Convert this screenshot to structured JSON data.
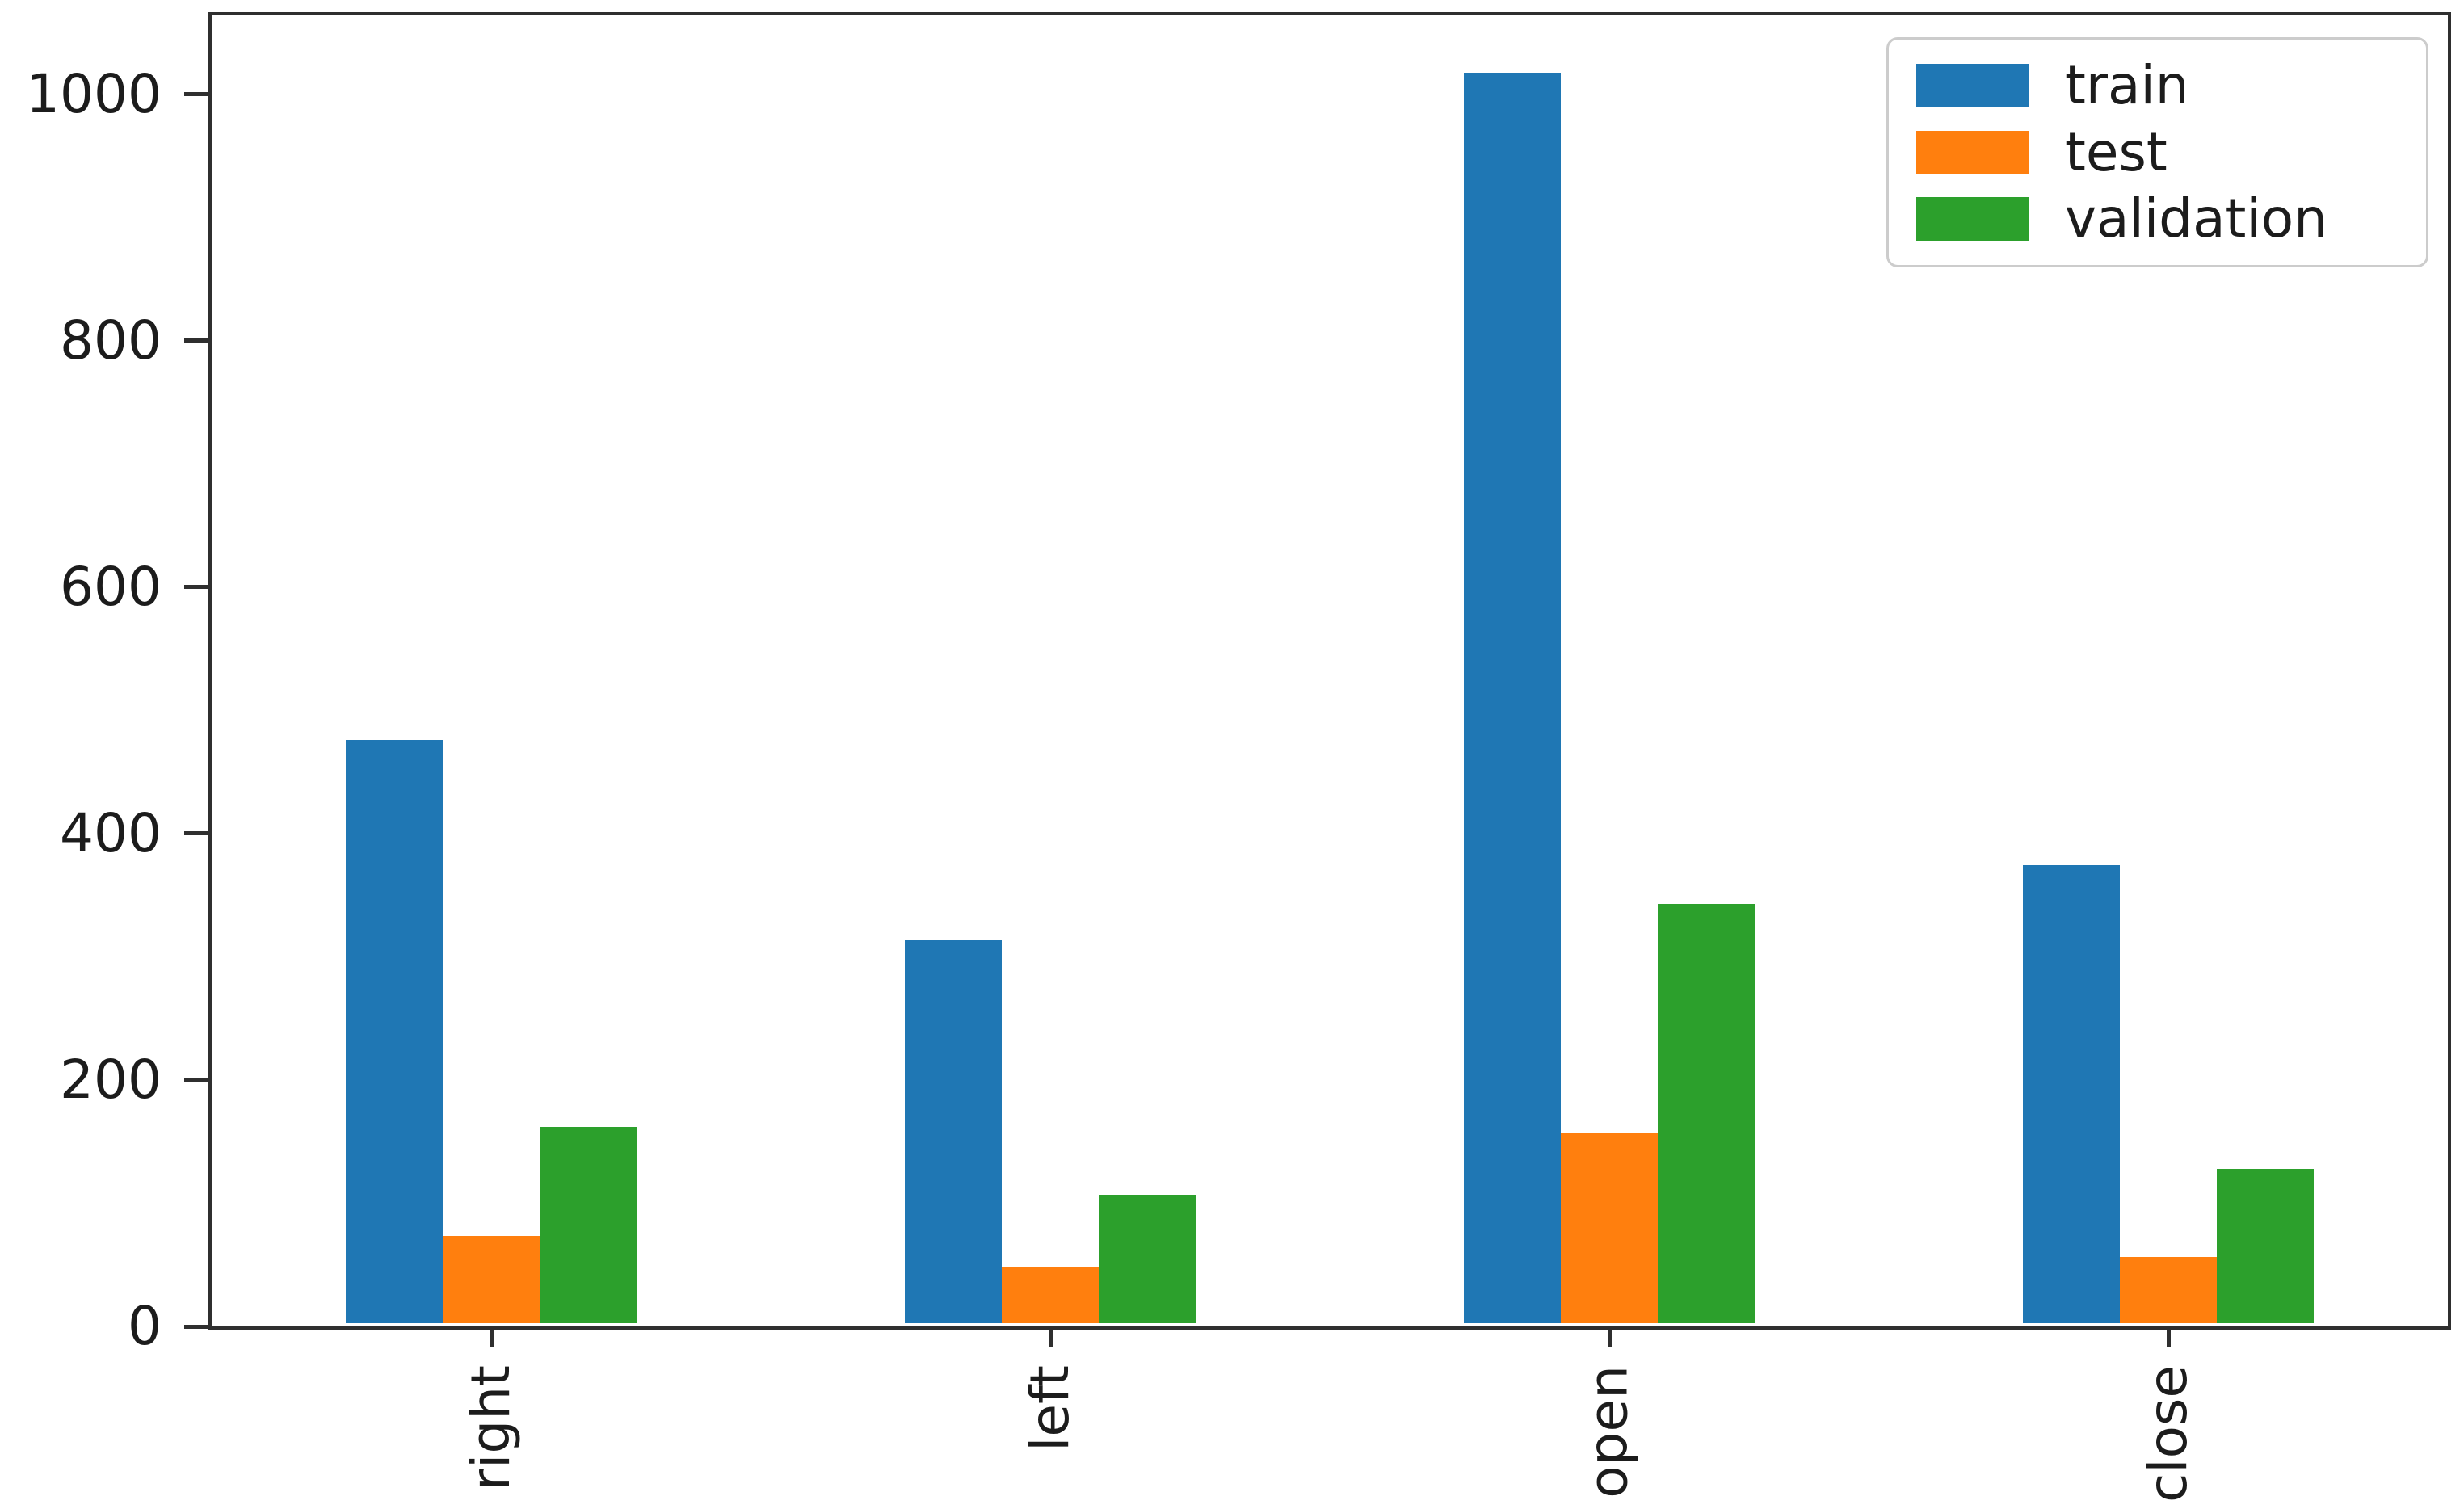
{
  "figure": {
    "background": "#ffffff",
    "spine_color": "#2f2f2f",
    "tick_color": "#2f2f2f",
    "text_color": "#1c1c1c"
  },
  "chart_data": {
    "type": "bar",
    "title": "",
    "xlabel": "",
    "ylabel": "",
    "categories": [
      "right",
      "left",
      "open",
      "close"
    ],
    "series": [
      {
        "name": "train",
        "color": "#1f77b4",
        "values": [
          473,
          311,
          1015,
          372
        ]
      },
      {
        "name": "test",
        "color": "#ff7f0e",
        "values": [
          71,
          45,
          154,
          54
        ]
      },
      {
        "name": "validation",
        "color": "#2ca02c",
        "values": [
          159,
          104,
          340,
          125
        ]
      }
    ],
    "yticks": [
      0,
      200,
      400,
      600,
      800,
      1000
    ],
    "ylim": [
      0,
      1064
    ],
    "grid": false,
    "legend_position": "upper right",
    "xtick_rotation": 90
  },
  "legend": {
    "items": [
      {
        "label": "train",
        "color": "#1f77b4"
      },
      {
        "label": "test",
        "color": "#ff7f0e"
      },
      {
        "label": "validation",
        "color": "#2ca02c"
      }
    ]
  }
}
